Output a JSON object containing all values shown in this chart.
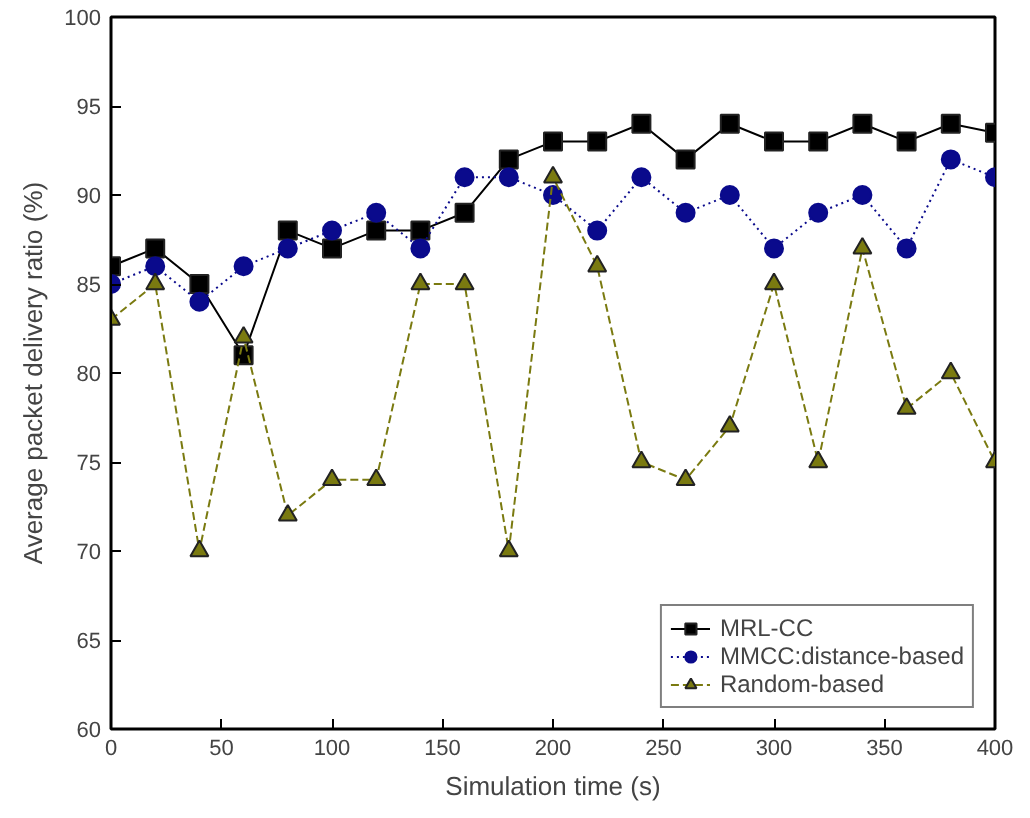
{
  "chart_data": {
    "type": "line",
    "xlabel": "Simulation time (s)",
    "ylabel": "Average packet delivery ratio (%)",
    "x": [
      0,
      20,
      40,
      60,
      80,
      100,
      120,
      140,
      160,
      180,
      200,
      220,
      240,
      260,
      280,
      300,
      320,
      340,
      360,
      380,
      400
    ],
    "series": [
      {
        "name": "MRL-CC",
        "color": "#000000",
        "marker": "square",
        "line_style": "solid",
        "values": [
          86,
          87,
          85,
          81,
          88,
          87,
          88,
          88,
          89,
          92,
          93,
          93,
          94,
          92,
          94,
          93,
          93,
          94,
          93,
          94,
          93.5
        ]
      },
      {
        "name": "MMCC:distance-based",
        "color": "#0a0a8c",
        "marker": "circle",
        "line_style": "dotted",
        "values": [
          85,
          86,
          84,
          86,
          87,
          88,
          89,
          87,
          91,
          91,
          90,
          88,
          91,
          89,
          90,
          87,
          89,
          90,
          87,
          92,
          91
        ]
      },
      {
        "name": "Random-based",
        "color": "#7a7a10",
        "marker": "triangle",
        "line_style": "dashed",
        "values": [
          83,
          85,
          70,
          82,
          72,
          74,
          74,
          85,
          85,
          70,
          91,
          86,
          75,
          74,
          77,
          85,
          75,
          87,
          78,
          80,
          75
        ]
      }
    ],
    "xlim": [
      0,
      400
    ],
    "ylim": [
      60,
      100
    ],
    "xticks": [
      0,
      50,
      100,
      150,
      200,
      250,
      300,
      350,
      400
    ],
    "yticks": [
      60,
      65,
      70,
      75,
      80,
      85,
      90,
      95,
      100
    ],
    "grid": false,
    "legend": "bottom right"
  }
}
